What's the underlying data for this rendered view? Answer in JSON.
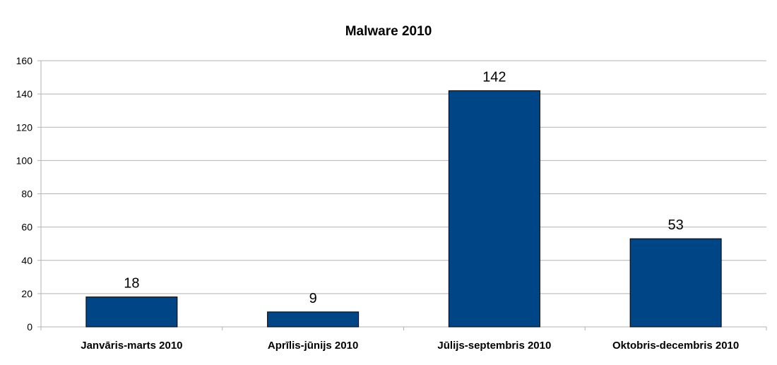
{
  "chart_data": {
    "type": "bar",
    "title": "Malware 2010",
    "xlabel": "",
    "ylabel": "",
    "categories": [
      "Janvāris-marts 2010",
      "Aprīlis-jūnijs 2010",
      "Jūlijs-septembris 2010",
      "Oktobris-decembris 2010"
    ],
    "values": [
      18,
      9,
      142,
      53
    ],
    "ylim": [
      0,
      160
    ],
    "yticks": [
      "0",
      "20",
      "40",
      "60",
      "80",
      "100",
      "120",
      "140",
      "160"
    ],
    "grid": true,
    "legend": "none",
    "data_labels": true,
    "bar_color": "#004586",
    "grid_color": "#b3b3b3"
  }
}
